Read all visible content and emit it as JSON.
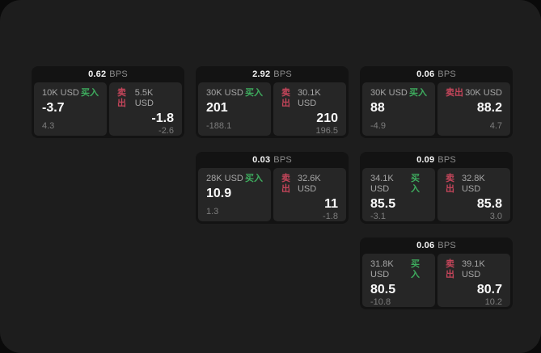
{
  "labels": {
    "buy": "买入",
    "sell": "卖出",
    "bps_unit": "BPS"
  },
  "colors": {
    "buy_accent": "#3eac5e",
    "sell_accent": "#c4455a",
    "panel_bg": "#262626",
    "card_bg": "#131313",
    "page_bg": "#1d1d1d"
  },
  "cards": [
    {
      "bps": "0.62",
      "buy": {
        "size": "10K USD",
        "price": "-3.7",
        "delta": "4.3"
      },
      "sell": {
        "size": "5.5K USD",
        "price": "-1.8",
        "delta": "-2.6"
      }
    },
    {
      "bps": "2.92",
      "buy": {
        "size": "30K USD",
        "price": "201",
        "delta": "-188.1"
      },
      "sell": {
        "size": "30.1K USD",
        "price": "210",
        "delta": "196.5"
      }
    },
    {
      "bps": "0.06",
      "buy": {
        "size": "30K USD",
        "price": "88",
        "delta": "-4.9"
      },
      "sell": {
        "size": "30K USD",
        "price": "88.2",
        "delta": "4.7"
      }
    },
    {
      "bps": "0.03",
      "buy": {
        "size": "28K USD",
        "price": "10.9",
        "delta": "1.3"
      },
      "sell": {
        "size": "32.6K USD",
        "price": "11",
        "delta": "-1.8"
      }
    },
    {
      "bps": "0.09",
      "buy": {
        "size": "34.1K USD",
        "price": "85.5",
        "delta": "-3.1"
      },
      "sell": {
        "size": "32.8K USD",
        "price": "85.8",
        "delta": "3.0"
      }
    },
    {
      "bps": "0.06",
      "buy": {
        "size": "31.8K USD",
        "price": "80.5",
        "delta": "-10.8"
      },
      "sell": {
        "size": "39.1K USD",
        "price": "80.7",
        "delta": "10.2"
      }
    }
  ]
}
